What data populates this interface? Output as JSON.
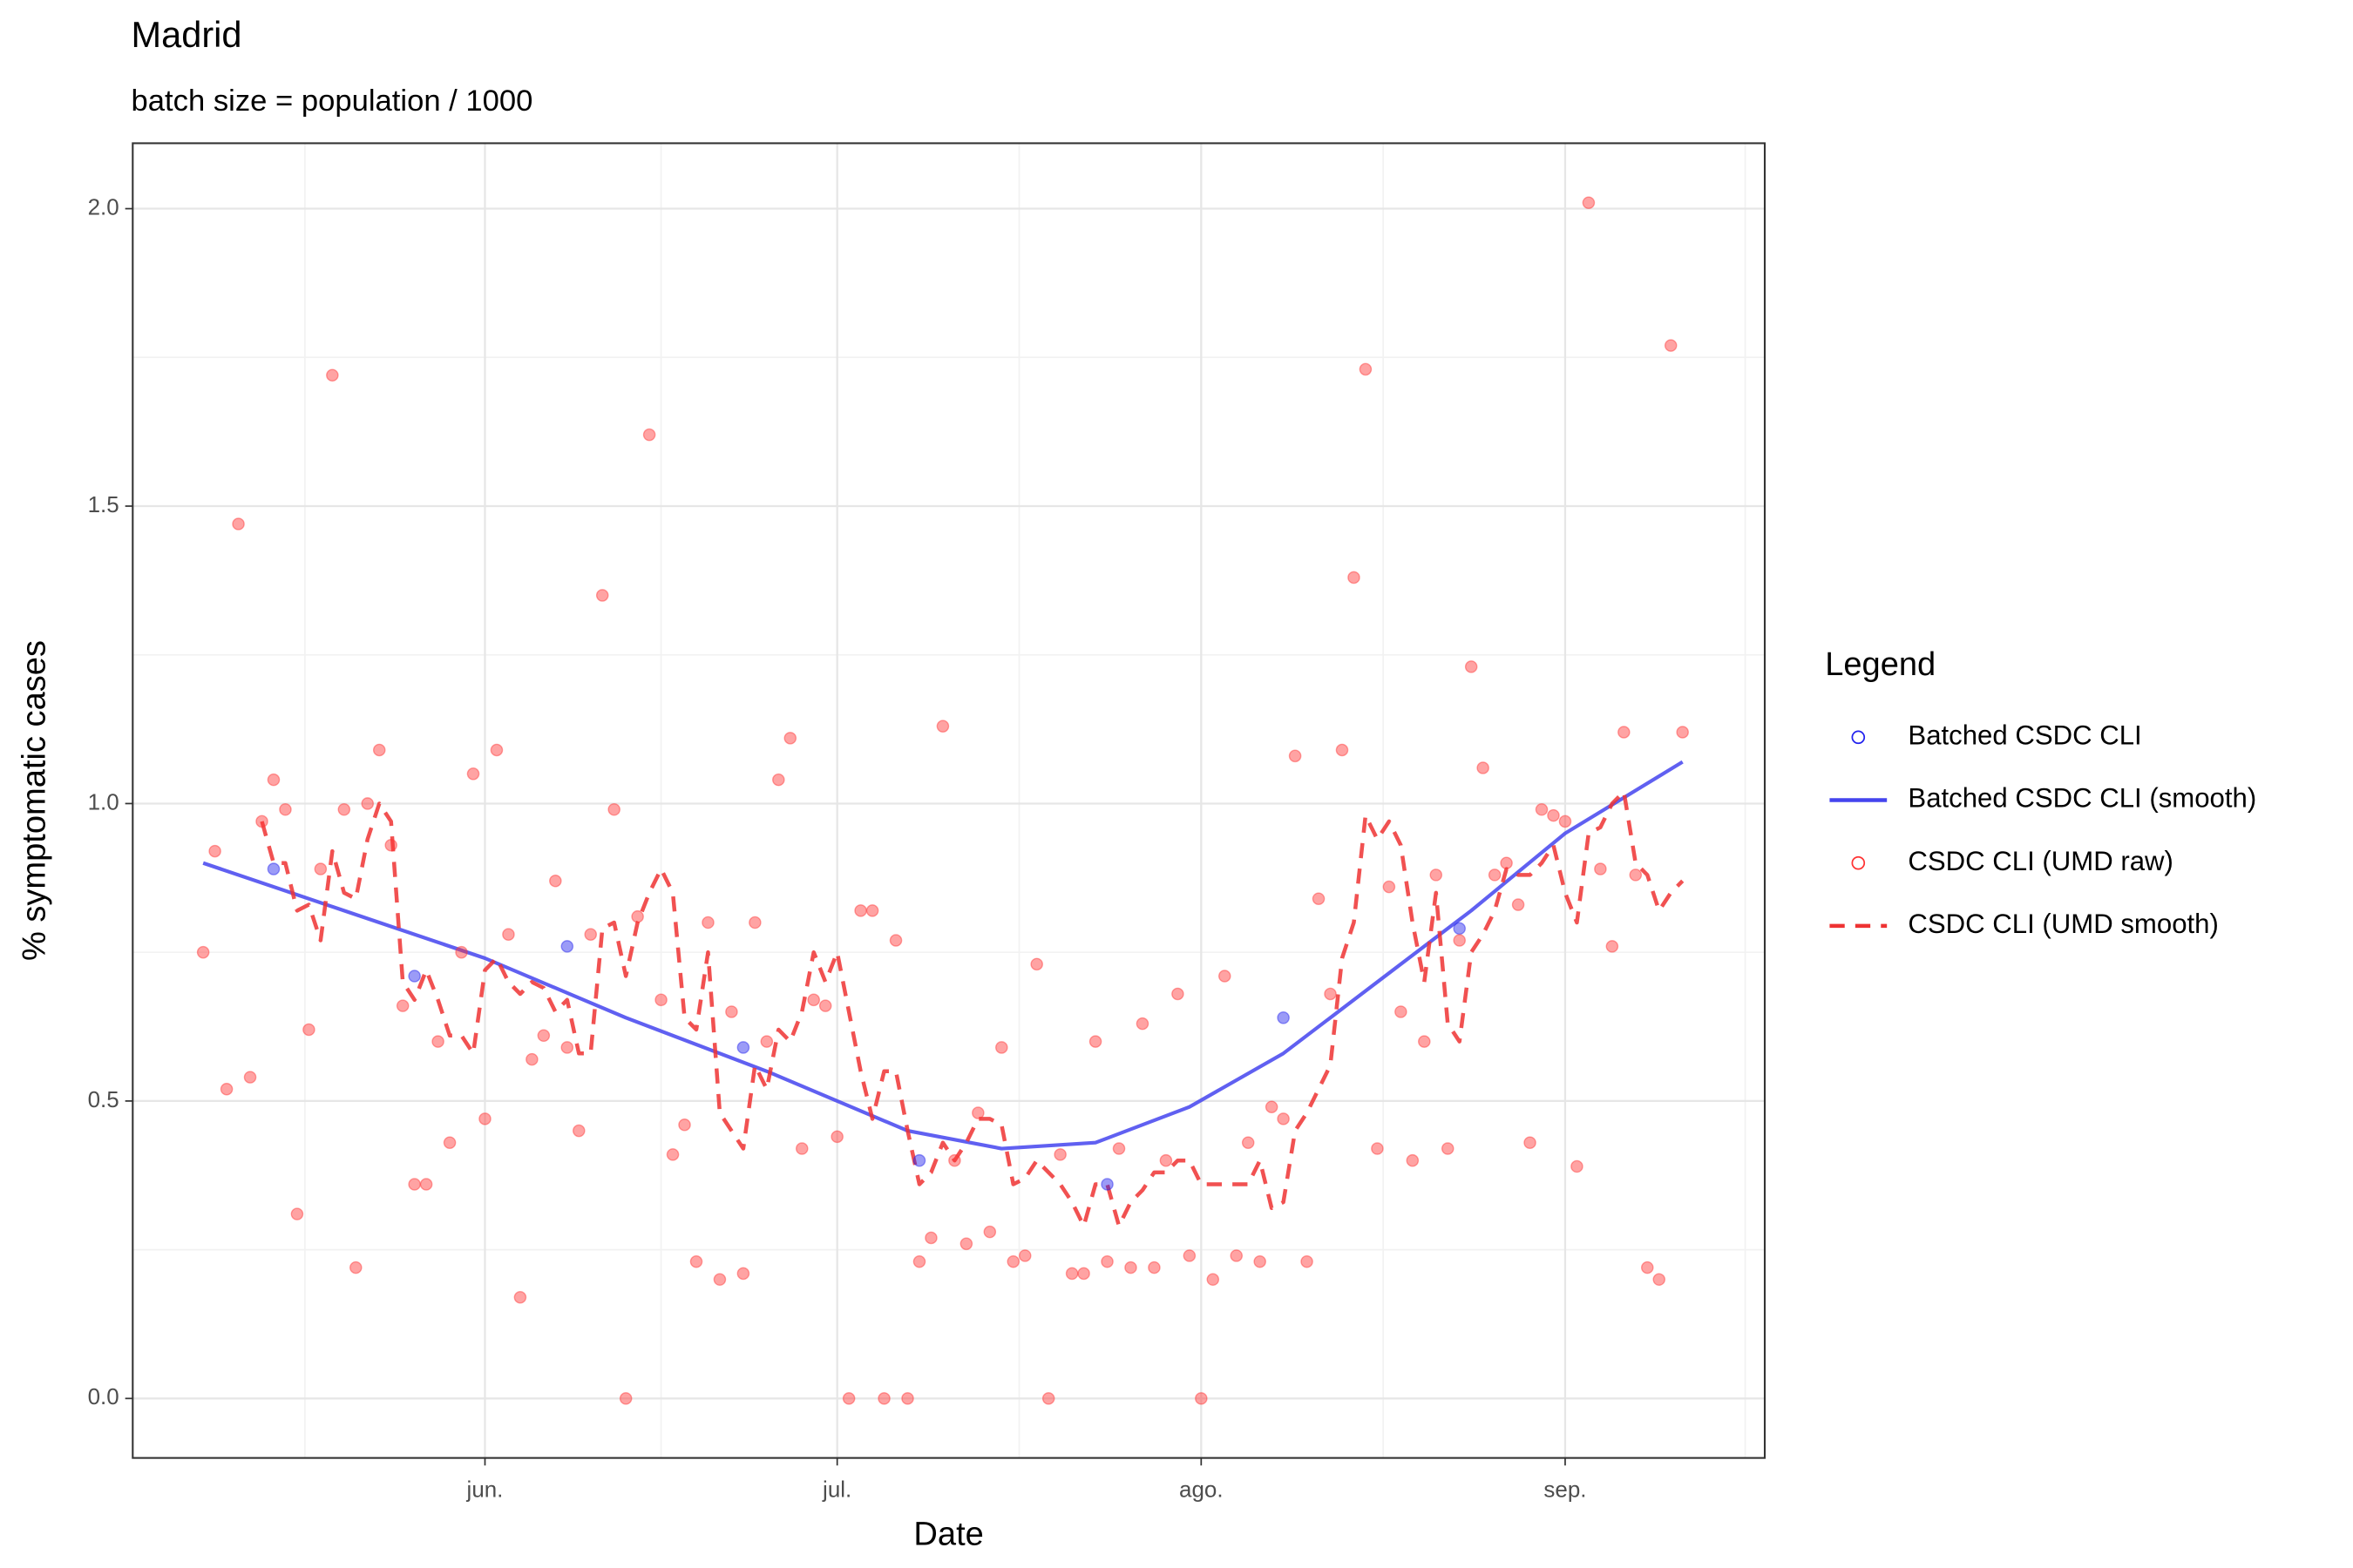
{
  "chart_data": {
    "type": "scatter",
    "title": "Madrid",
    "subtitle": "batch size = population / 1000",
    "x_label": "Date",
    "y_label": "% symptomatic cases",
    "legend_title": "Legend",
    "legend_position": "right",
    "grid": true,
    "xlim": [
      122,
      261
    ],
    "xticks": [
      {
        "value": 152,
        "label": "jun."
      },
      {
        "value": 182,
        "label": "jul."
      },
      {
        "value": 213,
        "label": "ago."
      },
      {
        "value": 244,
        "label": "sep."
      }
    ],
    "ylim": [
      -0.1,
      2.11
    ],
    "yticks": [
      {
        "value": 0,
        "label": "0.0"
      },
      0.5,
      {
        "value": 1,
        "label": "1.0"
      },
      1.5,
      {
        "value": 2,
        "label": "2.0"
      }
    ],
    "series": [
      {
        "name": "Batched CSDC CLI",
        "style": "points",
        "color": "#2222ee",
        "x": [
          134,
          146,
          159,
          174,
          189,
          205,
          220,
          235
        ],
        "values": [
          0.89,
          0.71,
          0.76,
          0.59,
          0.4,
          0.36,
          0.64,
          0.79
        ]
      },
      {
        "name": "Batched CSDC CLI (smooth)",
        "style": "line",
        "color": "#4444ee",
        "x": [
          128,
          140,
          152,
          164,
          176,
          188,
          196,
          204,
          212,
          220,
          228,
          236,
          244,
          254
        ],
        "values": [
          0.9,
          0.82,
          0.74,
          0.64,
          0.55,
          0.45,
          0.42,
          0.43,
          0.49,
          0.58,
          0.7,
          0.82,
          0.95,
          1.07
        ]
      },
      {
        "name": "CSDC CLI (UMD raw)",
        "style": "points",
        "color": "#ff3333",
        "x": [
          128,
          129,
          130,
          131,
          132,
          133,
          134,
          135,
          136,
          137,
          138,
          139,
          140,
          141,
          142,
          143,
          144,
          145,
          146,
          147,
          148,
          149,
          150,
          151,
          152,
          153,
          154,
          155,
          156,
          157,
          158,
          159,
          160,
          161,
          162,
          163,
          164,
          165,
          166,
          167,
          168,
          169,
          170,
          171,
          172,
          173,
          174,
          175,
          176,
          177,
          178,
          179,
          180,
          181,
          182,
          183,
          184,
          185,
          186,
          187,
          188,
          189,
          190,
          191,
          192,
          193,
          194,
          195,
          196,
          197,
          198,
          199,
          200,
          201,
          202,
          203,
          204,
          205,
          206,
          207,
          208,
          209,
          210,
          211,
          212,
          213,
          214,
          215,
          216,
          217,
          218,
          219,
          220,
          221,
          222,
          223,
          224,
          225,
          226,
          227,
          228,
          229,
          230,
          231,
          232,
          233,
          234,
          235,
          236,
          237,
          238,
          239,
          240,
          241,
          242,
          243,
          244,
          245,
          246,
          247,
          248,
          249,
          250,
          251,
          252,
          253,
          254
        ],
        "values": [
          0.75,
          0.92,
          0.52,
          1.47,
          0.54,
          0.97,
          1.04,
          0.99,
          0.31,
          0.62,
          0.89,
          1.72,
          0.99,
          0.22,
          1.0,
          1.09,
          0.93,
          0.66,
          0.36,
          0.36,
          0.6,
          0.43,
          0.75,
          1.05,
          0.47,
          1.09,
          0.78,
          0.17,
          0.57,
          0.61,
          0.87,
          0.59,
          0.45,
          0.78,
          1.35,
          0.99,
          0,
          0.81,
          1.62,
          0.67,
          0.41,
          0.46,
          0.23,
          0.8,
          0.2,
          0.65,
          0.21,
          0.8,
          0.6,
          1.04,
          1.11,
          0.42,
          0.67,
          0.66,
          0.44,
          0,
          0.82,
          0.82,
          0,
          0.77,
          0,
          0.23,
          0.27,
          1.13,
          0.4,
          0.26,
          0.48,
          0.28,
          0.59,
          0.23,
          0.24,
          0.73,
          0,
          0.41,
          0.21,
          0.21,
          0.6,
          0.23,
          0.42,
          0.22,
          0.63,
          0.22,
          0.4,
          0.68,
          0.24,
          0,
          0.2,
          0.71,
          0.24,
          0.43,
          0.23,
          0.49,
          0.47,
          1.08,
          0.23,
          0.84,
          0.68,
          1.09,
          1.38,
          1.73,
          0.42,
          0.86,
          0.65,
          0.4,
          0.6,
          0.88,
          0.42,
          0.77,
          1.23,
          1.06,
          0.88,
          0.9,
          0.83,
          0.43,
          0.99,
          0.98,
          0.97,
          0.39,
          2.01,
          0.89,
          0.76,
          1.12,
          0.88,
          0.22,
          0.2,
          1.77,
          1.12
        ]
      },
      {
        "name": "CSDC CLI (UMD smooth)",
        "style": "dashed",
        "color": "#ee3333",
        "x": [
          133,
          134,
          135,
          136,
          137,
          138,
          139,
          140,
          141,
          142,
          143,
          144,
          145,
          146,
          147,
          148,
          149,
          150,
          151,
          152,
          153,
          154,
          155,
          156,
          157,
          158,
          159,
          160,
          161,
          162,
          163,
          164,
          165,
          166,
          167,
          168,
          169,
          170,
          171,
          172,
          173,
          174,
          175,
          176,
          177,
          178,
          179,
          180,
          181,
          182,
          183,
          184,
          185,
          186,
          187,
          188,
          189,
          190,
          191,
          192,
          193,
          194,
          195,
          196,
          197,
          198,
          199,
          200,
          201,
          202,
          203,
          204,
          205,
          206,
          207,
          208,
          209,
          210,
          211,
          212,
          213,
          214,
          215,
          216,
          217,
          218,
          219,
          220,
          221,
          222,
          223,
          224,
          225,
          226,
          227,
          228,
          229,
          230,
          231,
          232,
          233,
          234,
          235,
          236,
          237,
          238,
          239,
          240,
          241,
          242,
          243,
          244,
          245,
          246,
          247,
          248,
          249,
          250,
          251,
          252,
          253,
          254
        ],
        "values": [
          0.97,
          0.9,
          0.9,
          0.82,
          0.83,
          0.77,
          0.92,
          0.85,
          0.84,
          0.94,
          1.0,
          0.97,
          0.7,
          0.67,
          0.72,
          0.67,
          0.61,
          0.61,
          0.58,
          0.72,
          0.74,
          0.7,
          0.68,
          0.7,
          0.69,
          0.65,
          0.67,
          0.58,
          0.58,
          0.79,
          0.8,
          0.71,
          0.8,
          0.85,
          0.89,
          0.85,
          0.64,
          0.62,
          0.75,
          0.48,
          0.45,
          0.42,
          0.56,
          0.52,
          0.62,
          0.6,
          0.65,
          0.75,
          0.7,
          0.75,
          0.65,
          0.55,
          0.47,
          0.55,
          0.55,
          0.45,
          0.36,
          0.38,
          0.43,
          0.4,
          0.43,
          0.47,
          0.47,
          0.46,
          0.36,
          0.37,
          0.4,
          0.38,
          0.36,
          0.33,
          0.29,
          0.36,
          0.36,
          0.29,
          0.33,
          0.35,
          0.38,
          0.38,
          0.4,
          0.4,
          0.36,
          0.36,
          0.36,
          0.36,
          0.36,
          0.4,
          0.32,
          0.33,
          0.45,
          0.48,
          0.52,
          0.56,
          0.74,
          0.8,
          0.98,
          0.94,
          0.97,
          0.93,
          0.8,
          0.7,
          0.85,
          0.63,
          0.6,
          0.75,
          0.78,
          0.82,
          0.89,
          0.88,
          0.88,
          0.9,
          0.93,
          0.85,
          0.8,
          0.95,
          0.96,
          1.0,
          1.02,
          0.9,
          0.88,
          0.82,
          0.85,
          0.87
        ]
      }
    ]
  }
}
